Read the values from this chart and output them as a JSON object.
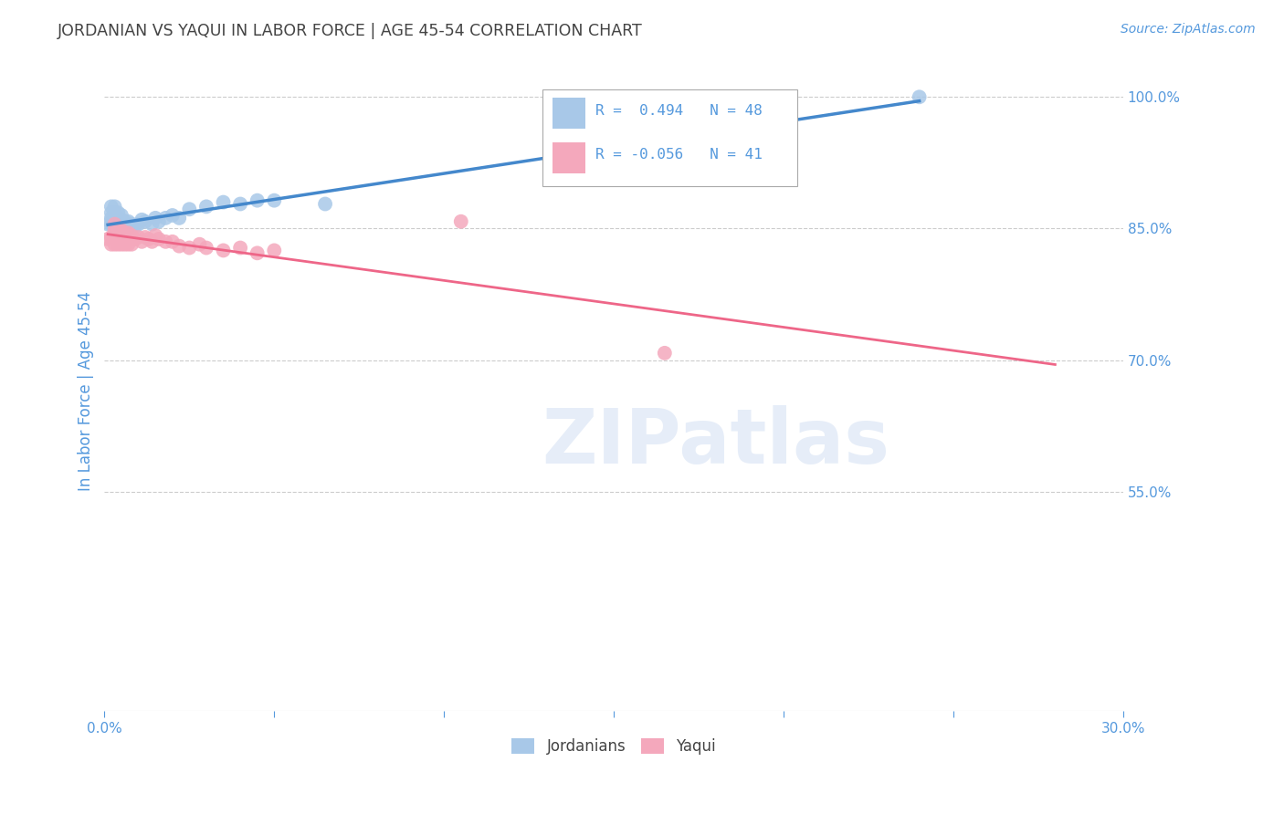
{
  "title": "JORDANIAN VS YAQUI IN LABOR FORCE | AGE 45-54 CORRELATION CHART",
  "source": "Source: ZipAtlas.com",
  "ylabel": "In Labor Force | Age 45-54",
  "watermark": "ZIPatlas",
  "xlim": [
    0.0,
    0.3
  ],
  "ylim": [
    0.3,
    1.03
  ],
  "blue_R": 0.494,
  "blue_N": 48,
  "pink_R": -0.056,
  "pink_N": 41,
  "blue_color": "#A8C8E8",
  "pink_color": "#F4A8BC",
  "blue_line_color": "#4488CC",
  "pink_line_color": "#EE6688",
  "title_color": "#444444",
  "axis_label_color": "#5599DD",
  "grid_color": "#CCCCCC",
  "ytick_positions": [
    0.55,
    0.7,
    0.85,
    1.0
  ],
  "yticklabels": [
    "55.0%",
    "70.0%",
    "85.0%",
    "100.0%"
  ],
  "blue_scatter_x": [
    0.001,
    0.002,
    0.002,
    0.002,
    0.002,
    0.003,
    0.003,
    0.003,
    0.003,
    0.003,
    0.004,
    0.004,
    0.004,
    0.004,
    0.004,
    0.004,
    0.005,
    0.005,
    0.005,
    0.005,
    0.005,
    0.005,
    0.006,
    0.006,
    0.006,
    0.007,
    0.007,
    0.007,
    0.008,
    0.008,
    0.009,
    0.01,
    0.011,
    0.012,
    0.014,
    0.015,
    0.016,
    0.018,
    0.02,
    0.022,
    0.025,
    0.03,
    0.035,
    0.04,
    0.045,
    0.05,
    0.065,
    0.24
  ],
  "blue_scatter_y": [
    0.855,
    0.855,
    0.862,
    0.868,
    0.875,
    0.852,
    0.855,
    0.86,
    0.868,
    0.875,
    0.848,
    0.852,
    0.855,
    0.86,
    0.862,
    0.868,
    0.845,
    0.85,
    0.853,
    0.856,
    0.86,
    0.865,
    0.848,
    0.852,
    0.858,
    0.848,
    0.852,
    0.858,
    0.85,
    0.855,
    0.852,
    0.855,
    0.86,
    0.858,
    0.855,
    0.862,
    0.858,
    0.862,
    0.865,
    0.862,
    0.872,
    0.875,
    0.88,
    0.878,
    0.882,
    0.882,
    0.878,
    1.0
  ],
  "pink_scatter_x": [
    0.001,
    0.002,
    0.002,
    0.003,
    0.003,
    0.003,
    0.003,
    0.004,
    0.004,
    0.004,
    0.005,
    0.005,
    0.005,
    0.005,
    0.006,
    0.006,
    0.006,
    0.007,
    0.007,
    0.008,
    0.008,
    0.009,
    0.01,
    0.011,
    0.012,
    0.013,
    0.014,
    0.015,
    0.016,
    0.018,
    0.02,
    0.022,
    0.025,
    0.028,
    0.03,
    0.035,
    0.04,
    0.045,
    0.05,
    0.105,
    0.165
  ],
  "pink_scatter_y": [
    0.838,
    0.832,
    0.84,
    0.832,
    0.84,
    0.848,
    0.855,
    0.832,
    0.84,
    0.848,
    0.832,
    0.838,
    0.84,
    0.848,
    0.832,
    0.838,
    0.845,
    0.832,
    0.845,
    0.832,
    0.842,
    0.838,
    0.84,
    0.835,
    0.84,
    0.838,
    0.835,
    0.842,
    0.838,
    0.835,
    0.835,
    0.83,
    0.828,
    0.832,
    0.828,
    0.825,
    0.828,
    0.822,
    0.825,
    0.858,
    0.708
  ],
  "blue_line_x0": 0.001,
  "blue_line_x1": 0.24,
  "pink_line_x0": 0.001,
  "pink_line_x1": 0.28
}
